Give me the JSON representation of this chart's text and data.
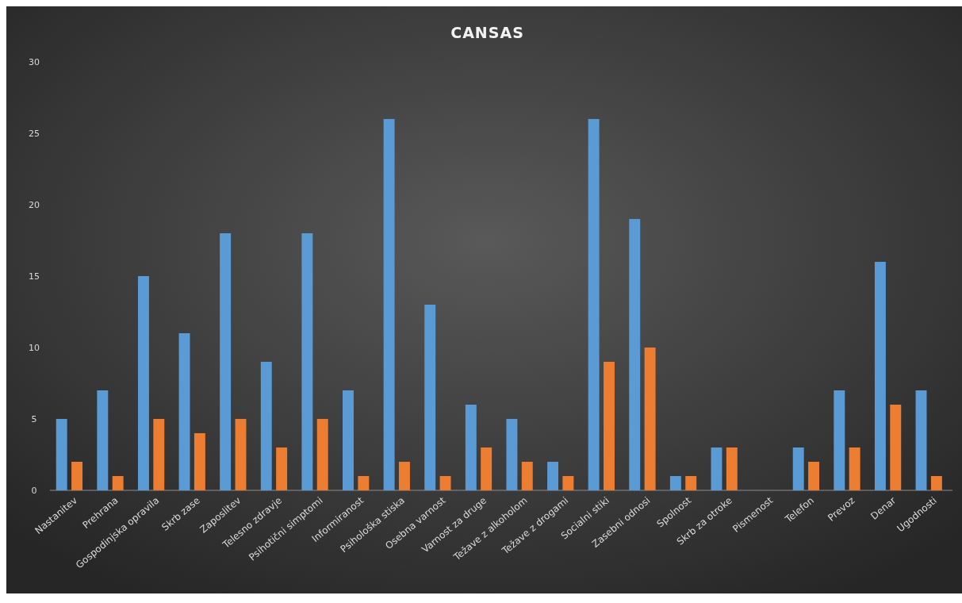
{
  "chart_data": {
    "type": "bar",
    "title": "CANSAS",
    "categories": [
      "Nastanitev",
      "Prehrana",
      "Gospodinjska opravila",
      "Skrb zase",
      "Zaposlitev",
      "Telesno zdravje",
      "Psihotični simptomi",
      "Informiranost",
      "Psihološka stiska",
      "Osebna varnost",
      "Varnost za druge",
      "Težave z alkoholom",
      "Težave z drogami",
      "Socialni stiki",
      "Zasebni odnosi",
      "Spolnost",
      "Skrb za otroke",
      "Pismenost",
      "Telefon",
      "Prevoz",
      "Denar",
      "Ugodnosti"
    ],
    "series": [
      {
        "color": "#5b9bd5",
        "values": [
          5,
          7,
          15,
          11,
          18,
          9,
          18,
          7,
          26,
          13,
          6,
          5,
          2,
          26,
          19,
          1,
          3,
          0,
          3,
          7,
          16,
          7
        ]
      },
      {
        "color": "#ed7d31",
        "values": [
          2,
          1,
          5,
          4,
          5,
          3,
          5,
          1,
          2,
          1,
          3,
          2,
          1,
          9,
          10,
          1,
          3,
          0,
          2,
          3,
          6,
          1
        ]
      }
    ],
    "ylim": [
      0,
      30
    ],
    "yticks": [
      0,
      5,
      10,
      15,
      20,
      25,
      30
    ],
    "grid": false
  }
}
